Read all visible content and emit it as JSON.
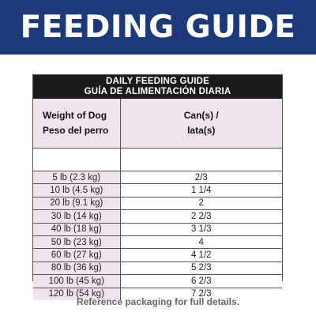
{
  "banner": {
    "title": "FEEDING GUIDE"
  },
  "guide": {
    "heading_en": "DAILY FEEDING GUIDE",
    "heading_es": "GUÍA DE ALIMENTACIÓN DIARIA",
    "col_weight_en": "Weight of Dog",
    "col_weight_es": "Peso del perro",
    "col_cans_line1": "Can(s) /",
    "col_cans_line2": "lata(s)",
    "rows": [
      {
        "weight": "5 lb (2.3 kg)",
        "cans": "2/3"
      },
      {
        "weight": "10 lb (4.5 kg)",
        "cans": "1 1/4"
      },
      {
        "weight": "20 lb (9.1 kg)",
        "cans": "2"
      },
      {
        "weight": "30 lb (14 kg)",
        "cans": "2 2/3"
      },
      {
        "weight": "40 lb (18 kg)",
        "cans": "3 1/3"
      },
      {
        "weight": "50 lb (23 kg)",
        "cans": "4"
      },
      {
        "weight": "60 lb (27 kg)",
        "cans": "4 1/2"
      },
      {
        "weight": "80 lb (36 kg)",
        "cans": "5 2/3"
      },
      {
        "weight": "100 lb (45 kg)",
        "cans": "6 2/3"
      },
      {
        "weight": "120 lb (54 kg)",
        "cans": "7 2/3"
      }
    ]
  },
  "footnote": "Reference packaging for full details."
}
